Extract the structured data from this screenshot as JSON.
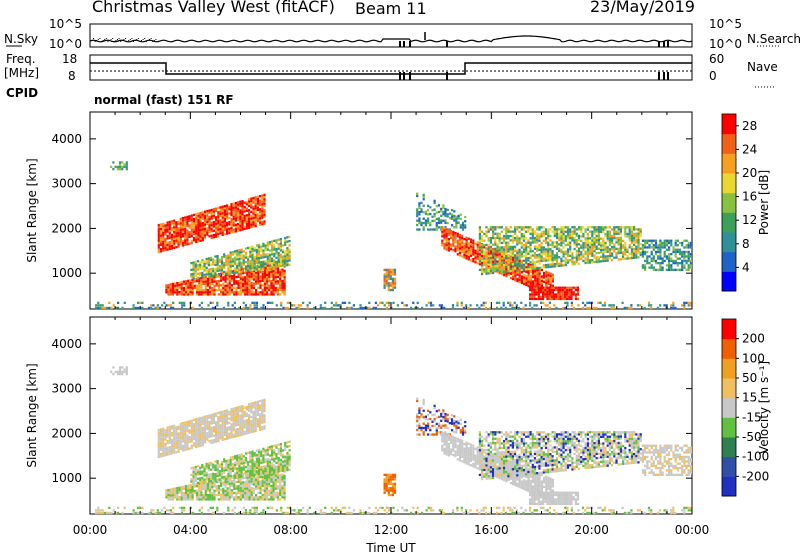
{
  "header": {
    "station": "Christmas Valley West (fitACF)",
    "beam": "Beam 11",
    "date": "23/May/2019"
  },
  "panels": {
    "nsky_label": "N.Sky",
    "nsearch_label": "N.Search",
    "freq_label_1": "Freq.",
    "freq_label_2": "[MHz]",
    "nave_label": "Nave",
    "cpid_label": "CPID",
    "cpid_value": "normal (fast) 151 RF",
    "nsky_ticks": [
      "10^5",
      "10^0"
    ],
    "nsearch_ticks": [
      "10^5",
      "10^0"
    ],
    "freq_ticks": [
      "18",
      "8"
    ],
    "nave_ticks": [
      "60",
      "0"
    ]
  },
  "chart_data": [
    {
      "type": "heatmap",
      "name": "power",
      "ylabel": "Slant Range [km]",
      "xlabel": "Time UT",
      "x_ticks": [
        "00:00",
        "04:00",
        "08:00",
        "12:00",
        "16:00",
        "20:00",
        "00:00"
      ],
      "y_ticks": [
        1000,
        2000,
        3000,
        4000
      ],
      "ylim": [
        200,
        4600
      ],
      "xlim_hours": [
        0,
        24
      ],
      "colorbar": {
        "label": "Power [dB]",
        "ticks": [
          4,
          8,
          12,
          16,
          20,
          24,
          28
        ],
        "range": [
          0,
          30
        ],
        "colors": [
          "#0000ff",
          "#1e64c8",
          "#2f8f9a",
          "#3aa05a",
          "#88c040",
          "#e8d830",
          "#f7a020",
          "#f06018",
          "#ff0000"
        ]
      }
    },
    {
      "type": "heatmap",
      "name": "velocity",
      "ylabel": "Slant Range [km]",
      "xlabel": "Time UT",
      "x_ticks": [
        "00:00",
        "04:00",
        "08:00",
        "12:00",
        "16:00",
        "20:00",
        "00:00"
      ],
      "y_ticks": [
        1000,
        2000,
        3000,
        4000
      ],
      "ylim": [
        200,
        4600
      ],
      "xlim_hours": [
        0,
        24
      ],
      "colorbar": {
        "label": "Velocity [m s⁻¹]",
        "ticks": [
          200,
          100,
          50,
          15,
          -15,
          -50,
          -100,
          -200
        ],
        "colors": [
          "#2030c0",
          "#3050a8",
          "#2f8050",
          "#60c040",
          "#c8c8c8",
          "#f0c060",
          "#f0a020",
          "#f06000",
          "#ff0000"
        ]
      }
    }
  ],
  "xaxis_label": "Time UT",
  "xaxis_ticks": [
    "00:00",
    "04:00",
    "08:00",
    "12:00",
    "16:00",
    "20:00",
    "00:00"
  ]
}
